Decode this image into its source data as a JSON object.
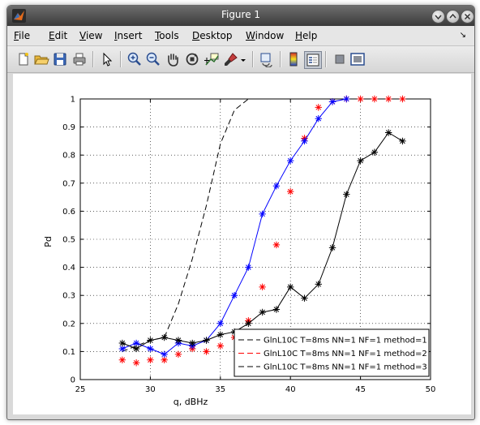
{
  "window": {
    "title": "Figure 1"
  },
  "menu": {
    "items": [
      {
        "first": "F",
        "rest": "ile"
      },
      {
        "first": "E",
        "rest": "dit"
      },
      {
        "first": "V",
        "rest": "iew"
      },
      {
        "first": "I",
        "rest": "nsert"
      },
      {
        "first": "T",
        "rest": "ools"
      },
      {
        "first": "D",
        "rest": "esktop"
      },
      {
        "first": "W",
        "rest": "indow"
      },
      {
        "first": "H",
        "rest": "elp"
      }
    ]
  },
  "toolbar": {
    "icons": [
      "new-figure-icon",
      "open-file-icon",
      "save-icon",
      "print-icon",
      "pointer-arrow-icon",
      "zoom-in-icon",
      "zoom-out-icon",
      "pan-hand-icon",
      "rotate-3d-icon",
      "data-cursor-icon",
      "brush-icon",
      "brush-dropdown-icon",
      "link-plot-icon",
      "colorbar-icon",
      "legend-icon",
      "hide-plot-tools-icon",
      "show-plot-tools-icon"
    ]
  },
  "chart_data": {
    "type": "line",
    "xlabel": "q, dBHz",
    "ylabel": "Pd",
    "xlim": [
      25,
      50
    ],
    "ylim": [
      0,
      1
    ],
    "xticks": [
      "25",
      "30",
      "35",
      "40",
      "45",
      "50"
    ],
    "yticks": [
      "0",
      "0.1",
      "0.2",
      "0.3",
      "0.4",
      "0.5",
      "0.6",
      "0.7",
      "0.8",
      "0.9",
      "1"
    ],
    "grid": true,
    "legend_position": "bottom-right",
    "legend": [
      "GlnL10C T=8ms NN=1 NF=1 method=1",
      "GlnL10C T=8ms NN=1 NF=1 method=2",
      "GlnL10C T=8ms NN=1 NF=1 method=3"
    ],
    "series": [
      {
        "color": "#000000",
        "style": "dashed",
        "marker": "none",
        "x": [
          28,
          29,
          30,
          31,
          32,
          33,
          34,
          35,
          36,
          37,
          38
        ],
        "y": [
          0.1,
          0.12,
          0.14,
          0.15,
          0.27,
          0.43,
          0.62,
          0.84,
          0.96,
          1.0,
          1.0
        ]
      },
      {
        "color": "#ff0000",
        "style": "dashed-marker",
        "marker": "star",
        "x": [
          28,
          29,
          30,
          31,
          32,
          33,
          34,
          35,
          36,
          37,
          38,
          39,
          40,
          41,
          42,
          43,
          44,
          45,
          46,
          47,
          48
        ],
        "y": [
          0.07,
          0.06,
          0.07,
          0.07,
          0.09,
          0.11,
          0.1,
          0.12,
          0.15,
          0.21,
          0.33,
          0.48,
          0.67,
          0.86,
          0.97,
          0.99,
          1.0,
          1.0,
          1.0,
          1.0,
          1.0
        ]
      },
      {
        "color": "#0000ff",
        "style": "solid",
        "marker": "star",
        "x": [
          28,
          29,
          30,
          31,
          32,
          33,
          34,
          35,
          36,
          37,
          38,
          39,
          40,
          41,
          42,
          43,
          44
        ],
        "y": [
          0.11,
          0.13,
          0.11,
          0.09,
          0.13,
          0.12,
          0.14,
          0.2,
          0.3,
          0.4,
          0.59,
          0.69,
          0.78,
          0.85,
          0.93,
          0.99,
          1.0
        ]
      },
      {
        "color": "#000000",
        "style": "solid",
        "marker": "star",
        "x": [
          28,
          29,
          30,
          31,
          32,
          33,
          34,
          35,
          36,
          37,
          38,
          39,
          40,
          41,
          42,
          43,
          44,
          45,
          46,
          47,
          48
        ],
        "y": [
          0.13,
          0.11,
          0.14,
          0.15,
          0.14,
          0.13,
          0.14,
          0.16,
          0.17,
          0.2,
          0.24,
          0.25,
          0.33,
          0.29,
          0.34,
          0.47,
          0.66,
          0.78,
          0.81,
          0.88,
          0.85
        ]
      }
    ]
  }
}
